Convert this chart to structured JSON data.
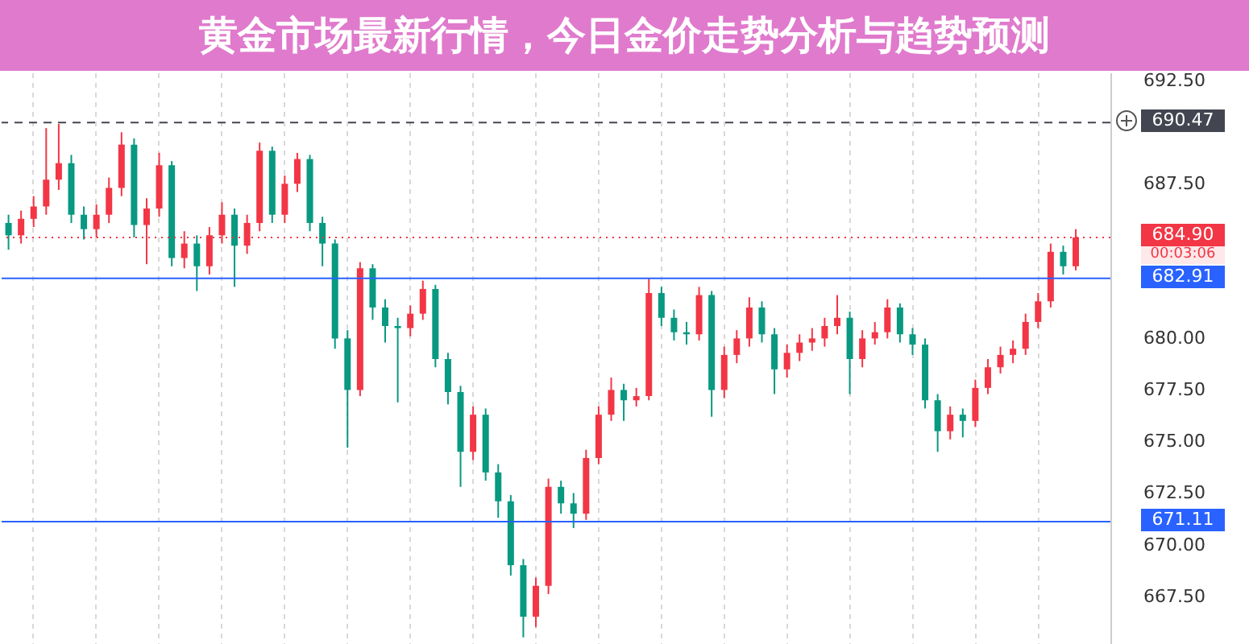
{
  "chart_data": {
    "type": "candlestick",
    "title": "黄金市场最新行情，今日金价走势分析与趋势预测",
    "categories": [
      null,
      null,
      null,
      null,
      null,
      null,
      null,
      null,
      null,
      null,
      null,
      null,
      null,
      null,
      null,
      null,
      null,
      null,
      null,
      null,
      null,
      null,
      null,
      null,
      null,
      null,
      null,
      null,
      null,
      null,
      null,
      null,
      null,
      null,
      null,
      null,
      null,
      null,
      null,
      null,
      null,
      null,
      null,
      null,
      null,
      null,
      null,
      null,
      null,
      null,
      null,
      null,
      null,
      null,
      null,
      null,
      null,
      null,
      null,
      null,
      null,
      null,
      null,
      null,
      null,
      null,
      null,
      null,
      null,
      null,
      null,
      null,
      null,
      null,
      null,
      null,
      null,
      null,
      null,
      null,
      null,
      null,
      null,
      null,
      null,
      null
    ],
    "ohlc": [
      [
        685.6,
        686.0,
        684.3,
        685.0
      ],
      [
        685.0,
        686.2,
        684.6,
        685.8
      ],
      [
        685.8,
        686.9,
        685.4,
        686.4
      ],
      [
        686.4,
        690.2,
        686.0,
        687.7
      ],
      [
        687.7,
        690.4,
        687.2,
        688.5
      ],
      [
        688.5,
        688.9,
        685.6,
        686.0
      ],
      [
        686.0,
        686.4,
        684.8,
        685.3
      ],
      [
        685.3,
        686.5,
        684.9,
        686.0
      ],
      [
        686.0,
        687.8,
        685.6,
        687.3
      ],
      [
        687.3,
        690.0,
        686.9,
        689.4
      ],
      [
        689.4,
        689.7,
        684.9,
        685.5
      ],
      [
        685.5,
        686.8,
        683.6,
        686.3
      ],
      [
        686.3,
        689.0,
        685.9,
        688.4
      ],
      [
        688.4,
        688.6,
        683.5,
        683.9
      ],
      [
        683.9,
        685.2,
        683.4,
        684.6
      ],
      [
        684.6,
        685.0,
        682.3,
        683.5
      ],
      [
        683.5,
        685.4,
        683.1,
        685.0
      ],
      [
        685.0,
        686.6,
        684.6,
        686.0
      ],
      [
        686.0,
        686.3,
        682.5,
        684.5
      ],
      [
        684.5,
        686.0,
        684.1,
        685.6
      ],
      [
        685.6,
        689.5,
        685.2,
        689.1
      ],
      [
        689.1,
        689.3,
        685.6,
        686.0
      ],
      [
        686.0,
        687.9,
        685.6,
        687.5
      ],
      [
        687.5,
        689.0,
        687.1,
        688.7
      ],
      [
        688.7,
        688.9,
        685.2,
        685.6
      ],
      [
        685.6,
        685.9,
        683.5,
        684.6
      ],
      [
        684.6,
        684.8,
        679.5,
        680.0
      ],
      [
        680.0,
        680.4,
        674.7,
        677.5
      ],
      [
        677.5,
        683.7,
        677.2,
        683.4
      ],
      [
        683.4,
        683.6,
        680.9,
        681.5
      ],
      [
        681.5,
        681.9,
        679.8,
        680.6
      ],
      [
        680.6,
        681.0,
        676.9,
        680.5
      ],
      [
        680.5,
        681.6,
        680.1,
        681.2
      ],
      [
        681.2,
        682.8,
        680.9,
        682.4
      ],
      [
        682.4,
        682.6,
        678.6,
        679.0
      ],
      [
        679.0,
        679.3,
        676.8,
        677.4
      ],
      [
        677.4,
        677.7,
        672.8,
        674.5
      ],
      [
        674.5,
        676.7,
        674.1,
        676.3
      ],
      [
        676.3,
        676.6,
        673.1,
        673.5
      ],
      [
        673.5,
        673.9,
        671.3,
        672.1
      ],
      [
        672.1,
        672.4,
        668.5,
        669.0
      ],
      [
        669.0,
        669.3,
        665.5,
        666.5
      ],
      [
        666.5,
        668.4,
        666.0,
        668.0
      ],
      [
        668.0,
        673.2,
        667.6,
        672.8
      ],
      [
        672.8,
        673.1,
        671.5,
        672.0
      ],
      [
        672.0,
        672.5,
        670.8,
        671.5
      ],
      [
        671.5,
        674.6,
        671.2,
        674.2
      ],
      [
        674.2,
        676.7,
        673.9,
        676.3
      ],
      [
        676.3,
        678.1,
        676.0,
        677.5
      ],
      [
        677.5,
        677.8,
        676.0,
        677.0
      ],
      [
        677.0,
        677.6,
        676.7,
        677.2
      ],
      [
        677.2,
        682.9,
        677.0,
        682.2
      ],
      [
        682.2,
        682.5,
        680.6,
        681.0
      ],
      [
        681.0,
        681.4,
        679.9,
        680.3
      ],
      [
        680.3,
        680.8,
        679.7,
        680.2
      ],
      [
        680.2,
        682.5,
        679.9,
        682.1
      ],
      [
        682.1,
        682.3,
        676.2,
        677.5
      ],
      [
        677.5,
        679.6,
        677.1,
        679.2
      ],
      [
        679.2,
        680.4,
        678.8,
        680.0
      ],
      [
        680.0,
        682.0,
        679.6,
        681.5
      ],
      [
        681.5,
        681.8,
        679.8,
        680.2
      ],
      [
        680.2,
        680.5,
        677.3,
        678.5
      ],
      [
        678.5,
        679.7,
        678.1,
        679.3
      ],
      [
        679.3,
        680.2,
        678.9,
        679.8
      ],
      [
        679.8,
        680.5,
        679.4,
        680.0
      ],
      [
        680.0,
        681.0,
        679.6,
        680.6
      ],
      [
        680.6,
        682.1,
        680.2,
        681.0
      ],
      [
        681.0,
        681.3,
        677.3,
        679.0
      ],
      [
        679.0,
        680.4,
        678.6,
        680.0
      ],
      [
        680.0,
        680.8,
        679.7,
        680.3
      ],
      [
        680.3,
        681.9,
        680.0,
        681.5
      ],
      [
        681.5,
        681.7,
        679.8,
        680.2
      ],
      [
        680.2,
        680.5,
        679.2,
        679.7
      ],
      [
        679.7,
        680.0,
        676.6,
        677.0
      ],
      [
        677.0,
        677.3,
        674.5,
        675.5
      ],
      [
        675.5,
        676.7,
        675.1,
        676.3
      ],
      [
        676.3,
        676.6,
        675.2,
        676.0
      ],
      [
        676.0,
        678.0,
        675.7,
        677.6
      ],
      [
        677.6,
        679.0,
        677.3,
        678.6
      ],
      [
        678.6,
        679.6,
        678.3,
        679.2
      ],
      [
        679.2,
        679.9,
        678.8,
        679.5
      ],
      [
        679.5,
        681.2,
        679.2,
        680.8
      ],
      [
        680.8,
        682.2,
        680.5,
        681.8
      ],
      [
        681.8,
        684.6,
        681.5,
        684.2
      ],
      [
        684.2,
        684.5,
        683.1,
        683.5
      ],
      [
        683.5,
        685.3,
        683.3,
        684.9
      ]
    ],
    "colors": [
      "#089981",
      "#f23645",
      "#f23645",
      "#f23645",
      "#f23645",
      "#089981",
      "#089981",
      "#f23645",
      "#f23645",
      "#f23645",
      "#089981",
      "#f23645",
      "#f23645",
      "#089981",
      "#f23645",
      "#089981",
      "#f23645",
      "#f23645",
      "#089981",
      "#f23645",
      "#f23645",
      "#089981",
      "#f23645",
      "#f23645",
      "#089981",
      "#089981",
      "#089981",
      "#089981",
      "#f23645",
      "#089981",
      "#089981",
      "#089981",
      "#f23645",
      "#f23645",
      "#089981",
      "#089981",
      "#089981",
      "#f23645",
      "#089981",
      "#089981",
      "#089981",
      "#089981",
      "#f23645",
      "#f23645",
      "#089981",
      "#089981",
      "#f23645",
      "#f23645",
      "#f23645",
      "#089981",
      "#f23645",
      "#f23645",
      "#089981",
      "#089981",
      "#089981",
      "#f23645",
      "#089981",
      "#f23645",
      "#f23645",
      "#f23645",
      "#089981",
      "#089981",
      "#f23645",
      "#f23645",
      "#f23645",
      "#f23645",
      "#f23645",
      "#089981",
      "#f23645",
      "#f23645",
      "#f23645",
      "#089981",
      "#089981",
      "#089981",
      "#089981",
      "#f23645",
      "#089981",
      "#f23645",
      "#f23645",
      "#f23645",
      "#f23645",
      "#f23645",
      "#f23645",
      "#f23645",
      "#089981",
      "#f23645"
    ],
    "ylim": [
      665.1,
      692.9
    ],
    "yticks": [
      {
        "value": 692.5,
        "label": "692.50"
      },
      {
        "value": 687.5,
        "label": "687.50"
      },
      {
        "value": 680,
        "label": "680.00"
      },
      {
        "value": 677.5,
        "label": "677.50"
      },
      {
        "value": 675,
        "label": "675.00"
      },
      {
        "value": 672.5,
        "label": "672.50"
      },
      {
        "value": 670,
        "label": "670.00"
      },
      {
        "value": 667.5,
        "label": "667.50"
      }
    ],
    "ref_lines": [
      {
        "axis": "y",
        "value": 690.47,
        "label": "690.47",
        "color": "#434651",
        "line_style": "dashed"
      },
      {
        "axis": "y",
        "value": 684.9,
        "label": "684.90",
        "color": "#f23645",
        "line_style": "dotted"
      },
      {
        "axis": "y",
        "value": 682.91,
        "label": "682.91",
        "color": "#2962ff",
        "line_style": "solid"
      },
      {
        "axis": "y",
        "value": 671.11,
        "label": "671.11",
        "color": "#2962ff",
        "line_style": "solid"
      }
    ],
    "annotations": [
      "00:03:06"
    ],
    "grid": "x",
    "tick_labels": "y"
  }
}
